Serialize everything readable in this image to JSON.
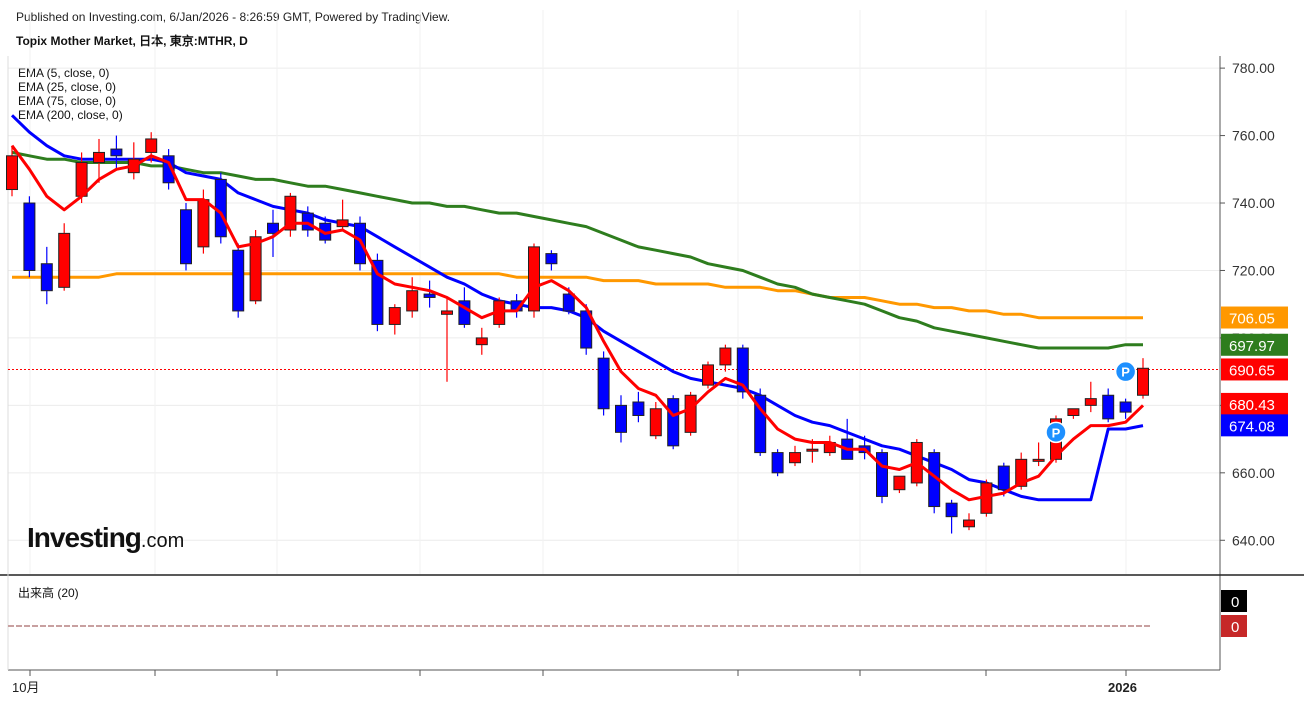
{
  "header": {
    "published": "Published on Investing.com, 6/Jan/2026 - 8:26:59 GMT, Powered by TradingView.",
    "symbol": "Topix Mother Market, 日本, 東京:MTHR, D"
  },
  "legend": {
    "ema5": "EMA (5, close, 0)",
    "ema25": "EMA (25, close, 0)",
    "ema75": "EMA (75, close, 0)",
    "ema200": "EMA (200, close, 0)"
  },
  "logo": {
    "main": "Investing",
    "suffix": ".com"
  },
  "volume": {
    "label": "出来高 (20)",
    "value_a": "0",
    "value_b": "0"
  },
  "colors": {
    "up": "#ff0000",
    "down": "#0000ff",
    "ema5": "#ff0000",
    "ema25": "#0000ff",
    "ema75": "#2e7d1e",
    "ema200": "#ff9800",
    "current": "#ff0000"
  },
  "chart_data": {
    "type": "candlestick",
    "y_ticks": [
      "640.00",
      "660.00",
      "680.00",
      "700.00",
      "720.00",
      "740.00",
      "760.00",
      "780.00"
    ],
    "y_tick_values": [
      640,
      660,
      680,
      700,
      720,
      740,
      760,
      780
    ],
    "ylim": [
      630,
      783
    ],
    "x_labels": [
      "10月",
      "2026"
    ],
    "candles": [
      {
        "o": 744,
        "h": 757,
        "l": 742,
        "c": 754
      },
      {
        "o": 740,
        "h": 742,
        "l": 718,
        "c": 720
      },
      {
        "o": 722,
        "h": 727,
        "l": 710,
        "c": 714
      },
      {
        "o": 715,
        "h": 734,
        "l": 714,
        "c": 731
      },
      {
        "o": 742,
        "h": 755,
        "l": 740,
        "c": 752
      },
      {
        "o": 752,
        "h": 759,
        "l": 746,
        "c": 755
      },
      {
        "o": 756,
        "h": 760,
        "l": 750,
        "c": 754
      },
      {
        "o": 749,
        "h": 758,
        "l": 747,
        "c": 753
      },
      {
        "o": 755,
        "h": 761,
        "l": 752,
        "c": 759
      },
      {
        "o": 754,
        "h": 756,
        "l": 744,
        "c": 746
      },
      {
        "o": 738,
        "h": 740,
        "l": 720,
        "c": 722
      },
      {
        "o": 727,
        "h": 744,
        "l": 725,
        "c": 741
      },
      {
        "o": 747,
        "h": 749,
        "l": 728,
        "c": 730
      },
      {
        "o": 726,
        "h": 728,
        "l": 706,
        "c": 708
      },
      {
        "o": 711,
        "h": 732,
        "l": 710,
        "c": 730
      },
      {
        "o": 734,
        "h": 738,
        "l": 724,
        "c": 731
      },
      {
        "o": 732,
        "h": 743,
        "l": 730,
        "c": 742
      },
      {
        "o": 737,
        "h": 739,
        "l": 730,
        "c": 732
      },
      {
        "o": 734,
        "h": 736,
        "l": 728,
        "c": 729
      },
      {
        "o": 733,
        "h": 741,
        "l": 732,
        "c": 735
      },
      {
        "o": 734,
        "h": 736,
        "l": 720,
        "c": 722
      },
      {
        "o": 723,
        "h": 725,
        "l": 702,
        "c": 704
      },
      {
        "o": 704,
        "h": 710,
        "l": 701,
        "c": 709
      },
      {
        "o": 708,
        "h": 718,
        "l": 706,
        "c": 714
      },
      {
        "o": 713,
        "h": 717,
        "l": 709,
        "c": 712
      },
      {
        "o": 707,
        "h": 712,
        "l": 687,
        "c": 708
      },
      {
        "o": 711,
        "h": 715,
        "l": 703,
        "c": 704
      },
      {
        "o": 698,
        "h": 703,
        "l": 695,
        "c": 700
      },
      {
        "o": 704,
        "h": 712,
        "l": 703,
        "c": 711
      },
      {
        "o": 711,
        "h": 713,
        "l": 706,
        "c": 708
      },
      {
        "o": 708,
        "h": 728,
        "l": 706,
        "c": 727
      },
      {
        "o": 725,
        "h": 726,
        "l": 720,
        "c": 722
      },
      {
        "o": 713,
        "h": 715,
        "l": 707,
        "c": 708
      },
      {
        "o": 708,
        "h": 710,
        "l": 695,
        "c": 697
      },
      {
        "o": 694,
        "h": 696,
        "l": 677,
        "c": 679
      },
      {
        "o": 680,
        "h": 683,
        "l": 669,
        "c": 672
      },
      {
        "o": 681,
        "h": 684,
        "l": 675,
        "c": 677
      },
      {
        "o": 671,
        "h": 681,
        "l": 670,
        "c": 679
      },
      {
        "o": 682,
        "h": 683,
        "l": 667,
        "c": 668
      },
      {
        "o": 672,
        "h": 684,
        "l": 671,
        "c": 683
      },
      {
        "o": 686,
        "h": 693,
        "l": 685,
        "c": 692
      },
      {
        "o": 692,
        "h": 698,
        "l": 690,
        "c": 697
      },
      {
        "o": 697,
        "h": 698,
        "l": 682,
        "c": 684
      },
      {
        "o": 683,
        "h": 685,
        "l": 665,
        "c": 666
      },
      {
        "o": 666,
        "h": 667,
        "l": 659,
        "c": 660
      },
      {
        "o": 663,
        "h": 668,
        "l": 662,
        "c": 666
      },
      {
        "o": 667,
        "h": 670,
        "l": 663,
        "c": 667
      },
      {
        "o": 666,
        "h": 671,
        "l": 665,
        "c": 669
      },
      {
        "o": 670,
        "h": 676,
        "l": 665,
        "c": 664
      },
      {
        "o": 668,
        "h": 671,
        "l": 664,
        "c": 666
      },
      {
        "o": 666,
        "h": 667,
        "l": 651,
        "c": 653
      },
      {
        "o": 655,
        "h": 659,
        "l": 654,
        "c": 659
      },
      {
        "o": 657,
        "h": 670,
        "l": 656,
        "c": 669
      },
      {
        "o": 666,
        "h": 667,
        "l": 648,
        "c": 650
      },
      {
        "o": 651,
        "h": 652,
        "l": 642,
        "c": 647
      },
      {
        "o": 644,
        "h": 648,
        "l": 643,
        "c": 646
      },
      {
        "o": 648,
        "h": 658,
        "l": 647,
        "c": 657
      },
      {
        "o": 662,
        "h": 663,
        "l": 653,
        "c": 655
      },
      {
        "o": 656,
        "h": 666,
        "l": 655,
        "c": 664
      },
      {
        "o": 664,
        "h": 669,
        "l": 662,
        "c": 664
      },
      {
        "o": 664,
        "h": 677,
        "l": 663,
        "c": 676
      },
      {
        "o": 677,
        "h": 679,
        "l": 676,
        "c": 679
      },
      {
        "o": 680,
        "h": 687,
        "l": 678,
        "c": 682
      },
      {
        "o": 683,
        "h": 685,
        "l": 675,
        "c": 676
      },
      {
        "o": 681,
        "h": 682,
        "l": 676,
        "c": 678
      },
      {
        "o": 683,
        "h": 694,
        "l": 682,
        "c": 691
      }
    ],
    "ema5": [
      757,
      750,
      742,
      738,
      742,
      747,
      750,
      751,
      754,
      752,
      741,
      741,
      737,
      727,
      728,
      730,
      734,
      734,
      731,
      732,
      729,
      719,
      716,
      715,
      714,
      712,
      709,
      706,
      708,
      708,
      715,
      717,
      714,
      709,
      699,
      690,
      685,
      683,
      677,
      679,
      684,
      688,
      686,
      679,
      673,
      670,
      669,
      669,
      667,
      667,
      662,
      661,
      663,
      659,
      655,
      652,
      653,
      654,
      657,
      659,
      665,
      670,
      674,
      674,
      675,
      680
    ],
    "ema25": [
      766,
      761,
      757,
      754,
      753,
      753,
      753,
      753,
      753,
      752,
      749,
      748,
      747,
      743,
      741,
      739,
      738,
      737,
      735,
      734,
      733,
      730,
      727,
      724,
      721,
      718,
      716,
      713,
      711,
      710,
      709,
      709,
      708,
      706,
      702,
      699,
      696,
      693,
      690,
      688,
      687,
      686,
      685,
      683,
      680,
      677,
      675,
      674,
      672,
      670,
      668,
      667,
      665,
      663,
      661,
      658,
      657,
      655,
      653,
      652,
      652,
      652,
      652,
      673,
      673,
      674
    ],
    "ema75": [
      755,
      754,
      753,
      753,
      752,
      752,
      752,
      752,
      751,
      751,
      750,
      749,
      749,
      748,
      747,
      747,
      746,
      745,
      745,
      744,
      743,
      742,
      741,
      740,
      740,
      739,
      739,
      738,
      737,
      737,
      736,
      735,
      734,
      733,
      731,
      729,
      727,
      726,
      725,
      724,
      722,
      721,
      720,
      718,
      716,
      715,
      713,
      712,
      711,
      710,
      708,
      706,
      705,
      703,
      702,
      701,
      700,
      699,
      698,
      697,
      697,
      697,
      697,
      697,
      698,
      698
    ],
    "ema200": [
      718,
      718,
      718,
      718,
      718,
      718,
      719,
      719,
      719,
      719,
      719,
      719,
      719,
      719,
      719,
      719,
      719,
      719,
      719,
      719,
      719,
      719,
      719,
      719,
      719,
      719,
      719,
      719,
      719,
      718,
      718,
      718,
      718,
      718,
      717,
      717,
      717,
      716,
      716,
      716,
      716,
      715,
      715,
      715,
      714,
      714,
      713,
      712,
      712,
      712,
      711,
      710,
      710,
      709,
      709,
      708,
      708,
      707,
      707,
      706,
      706,
      706,
      706,
      706,
      706,
      706
    ],
    "labels": [
      {
        "text": "706.05",
        "value": 706.05,
        "color": "#ff9800"
      },
      {
        "text": "697.97",
        "value": 697.97,
        "color": "#2e7d1e"
      },
      {
        "text": "690.65",
        "value": 690.65,
        "color": "#ff0000"
      },
      {
        "text": "680.43",
        "value": 680.43,
        "color": "#ff0000"
      },
      {
        "text": "674.08",
        "value": 674.08,
        "color": "#0000ff"
      }
    ],
    "current_price": 690.65,
    "markers": [
      {
        "index": 60,
        "value": 672,
        "label": "P"
      },
      {
        "index": 64,
        "value": 690,
        "label": "P"
      }
    ]
  }
}
